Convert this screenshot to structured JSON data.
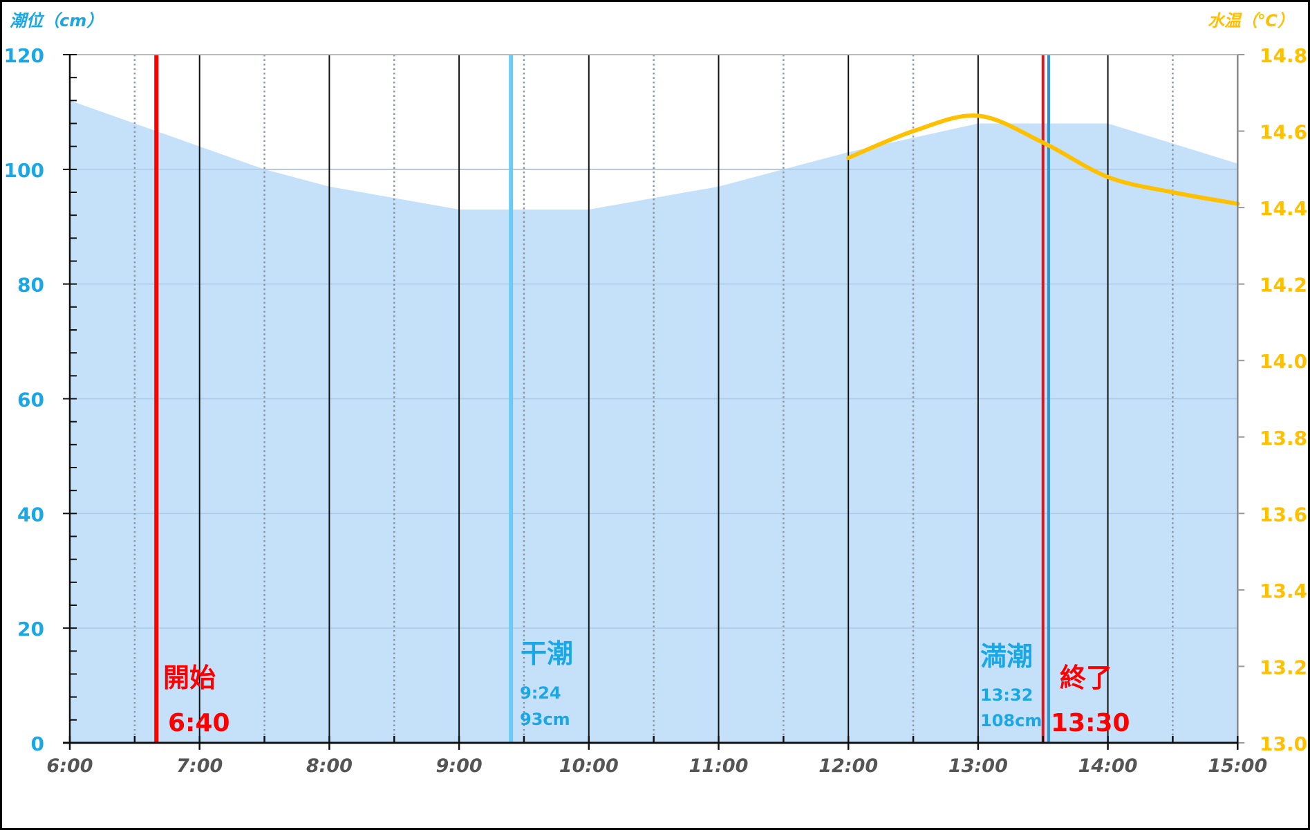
{
  "chart_data": {
    "type": "area",
    "title": "",
    "xlabel": "",
    "ylabel": "潮位（cm）",
    "y2label": "水温（℃）",
    "xlim": [
      6,
      15
    ],
    "ylim": [
      0,
      120
    ],
    "y2lim": [
      13.0,
      14.8
    ],
    "x_ticks": [
      "6:00",
      "7:00",
      "8:00",
      "9:00",
      "10:00",
      "11:00",
      "12:00",
      "13:00",
      "14:00",
      "15:00"
    ],
    "y_ticks": [
      0,
      20,
      40,
      60,
      80,
      100,
      120
    ],
    "y2_ticks": [
      "13.0",
      "13.2",
      "13.4",
      "13.6",
      "13.8",
      "14.0",
      "14.2",
      "14.4",
      "14.6",
      "14.8"
    ],
    "grid": {
      "horizontal": true,
      "vertical_hour": "solid",
      "vertical_half_hour": "dotted"
    },
    "series": [
      {
        "name": "潮位",
        "type": "area",
        "axis": "left",
        "color": "#c2dffa",
        "x": [
          "6:00",
          "6:30",
          "7:00",
          "7:30",
          "8:00",
          "8:30",
          "9:00",
          "10:00",
          "10:30",
          "11:00",
          "11:30",
          "12:00",
          "12:30",
          "13:00",
          "14:00",
          "14:30",
          "15:00"
        ],
        "values": [
          112,
          108,
          104,
          100,
          97,
          95,
          93,
          93,
          95,
          97,
          100,
          103,
          105.5,
          108,
          108,
          104.5,
          101
        ]
      },
      {
        "name": "水温",
        "type": "line",
        "axis": "right",
        "color": "#ffc000",
        "x": [
          "12:00",
          "12:30",
          "13:00",
          "13:30",
          "14:00",
          "14:30",
          "15:00"
        ],
        "values": [
          14.53,
          14.6,
          14.64,
          14.57,
          14.48,
          14.44,
          14.41
        ]
      }
    ],
    "markers": [
      {
        "name": "開始",
        "time": "6:40",
        "hour": 6.667,
        "color": "#ff0000",
        "label": "開始",
        "sub": "6:40"
      },
      {
        "name": "干潮",
        "time": "9:24",
        "hour": 9.4,
        "color": "#6ccbf5",
        "label": "干潮",
        "sub1": "9:24",
        "sub2": "93cm"
      },
      {
        "name": "満潮",
        "time": "13:32",
        "hour": 13.533,
        "color": "#2e8fd6",
        "label": "満潮",
        "sub1": "13:32",
        "sub2": "108cm"
      },
      {
        "name": "終了",
        "time": "13:30",
        "hour": 13.5,
        "color": "#e0161e",
        "label": "終了",
        "sub": "13:30"
      }
    ]
  },
  "axes": {
    "left_title": "潮位（cm）",
    "right_title": "水温（℃）",
    "left_color": "#1aa7e6",
    "right_color": "#ffc000",
    "x_label_color": "#555555"
  },
  "annotations": {
    "start_label": "開始",
    "start_time": "6:40",
    "low_label": "干潮",
    "low_time": "9:24",
    "low_height": "93cm",
    "high_label": "満潮",
    "high_time": "13:32",
    "high_height": "108cm",
    "end_label": "終了",
    "end_time": "13:30"
  }
}
